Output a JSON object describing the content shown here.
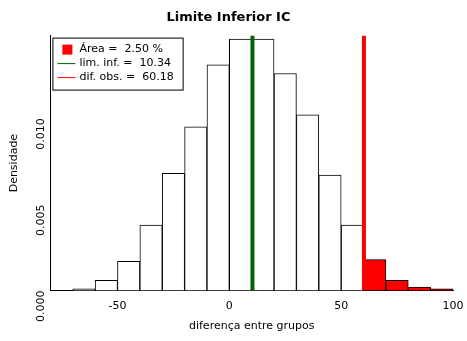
{
  "chart_data": {
    "type": "histogram",
    "title": "Limite Inferior IC",
    "x_label": "diferença entre grupos",
    "y_label": "Densidade",
    "bins": [
      -70,
      -60,
      -50,
      -40,
      -30,
      -20,
      -10,
      0,
      10,
      20,
      30,
      40,
      50,
      60,
      70,
      80,
      90,
      100
    ],
    "values": [
      0.0001,
      0.0006,
      0.0017,
      0.0038,
      0.0068,
      0.0095,
      0.0131,
      0.0146,
      0.0146,
      0.0126,
      0.0102,
      0.0067,
      0.0038,
      0.0018,
      0.0006,
      0.0002,
      0.0001
    ],
    "colors": [
      "#ffffff",
      "#ffffff",
      "#ffffff",
      "#ffffff",
      "#ffffff",
      "#ffffff",
      "#ffffff",
      "#ffffff",
      "#ffffff",
      "#ffffff",
      "#ffffff",
      "#ffffff",
      "#ffffff",
      "#ff0000",
      "#ff0000",
      "#ff0000",
      "#ff0000"
    ],
    "area": {
      "label": "Área =  2.50 %",
      "color": "#ff0000"
    },
    "vlines": [
      {
        "label": "lim. inf. =  10.34",
        "value": 10.34,
        "color": "#006400"
      },
      {
        "label": "dif. obs. =  60.18",
        "value": 60.18,
        "color": "#ff0000"
      }
    ],
    "xlim": [
      -80,
      100
    ],
    "xticks": [
      -50,
      0,
      50,
      100
    ],
    "ylim": [
      0,
      0.0148
    ],
    "yticks": [
      {
        "value": 0,
        "label": "0.000"
      },
      {
        "value": 0.005,
        "label": "0.005"
      },
      {
        "value": 0.01,
        "label": "0.010"
      }
    ],
    "legend": "top-left",
    "grid": false
  }
}
